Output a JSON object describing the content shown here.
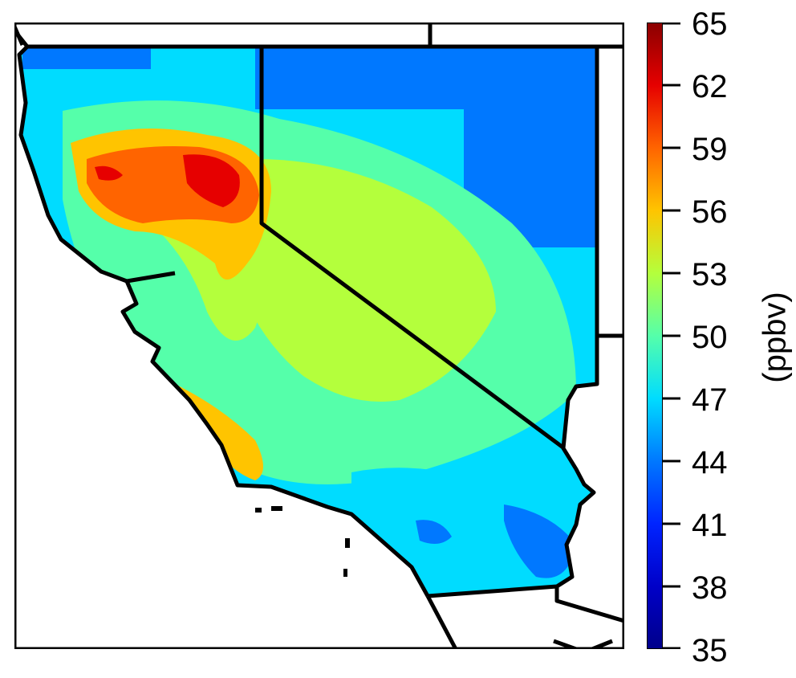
{
  "map": {
    "region": "California and Nevada",
    "shading": "ozone concentration field",
    "border_color": "#000000"
  },
  "colorbar": {
    "unit_label": "(ppbv)",
    "ticks": [
      "65",
      "62",
      "59",
      "56",
      "53",
      "50",
      "47",
      "44",
      "41",
      "38",
      "35"
    ],
    "range": [
      35,
      65
    ],
    "colors": {
      "35": "#00008a",
      "38": "#0000c8",
      "41": "#0024ff",
      "44": "#0078ff",
      "47": "#00dcff",
      "50": "#55ffaa",
      "53": "#b4ff3c",
      "56": "#ffc400",
      "59": "#ff6400",
      "62": "#e60000",
      "65": "#8a0000"
    }
  }
}
